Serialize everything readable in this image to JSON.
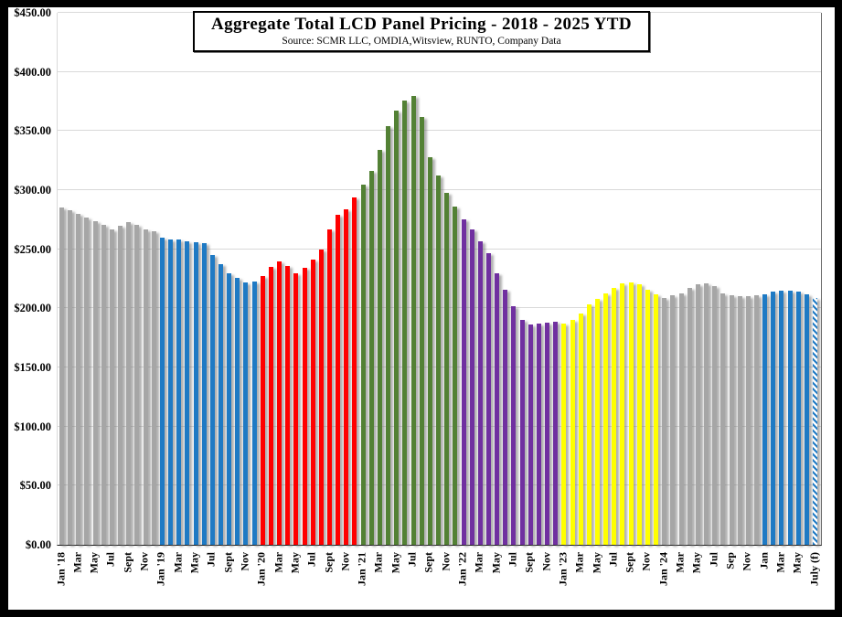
{
  "header": {
    "title": "Aggregate Total LCD Panel Pricing - 2018 - 2025 YTD",
    "subtitle": "Source: SCMR LLC, OMDIA,Witsview,  RUNTO, Company Data"
  },
  "chart_data": {
    "type": "bar",
    "title": "Aggregate Total LCD Panel Pricing - 2018 - 2025 YTD",
    "subtitle": "Source: SCMR LLC, OMDIA,Witsview,  RUNTO, Company Data",
    "xlabel": "",
    "ylabel": "",
    "ylim": [
      0,
      450
    ],
    "ytick_step": 50,
    "ytick_labels": [
      "$450.00",
      "$400.00",
      "$350.00",
      "$300.00",
      "$250.00",
      "$200.00",
      "$150.00",
      "$100.00",
      "$50.00",
      "$0.00"
    ],
    "grid": true,
    "legend_position": "none",
    "x_unit": "month",
    "x_tick_every_n_bars": 2,
    "x_tick_labels": [
      "Jan '18",
      "Mar",
      "May",
      "Jul",
      "Sept",
      "Nov",
      "Jan '19",
      "Mar",
      "May",
      "Jul",
      "Sept",
      "Nov",
      "Jan '20",
      "Mar",
      "May",
      "Jul",
      "Sept",
      "Nov",
      "Jan '21",
      "Mar",
      "May",
      "Jul",
      "Sept",
      "Nov",
      "Jan '22",
      "Mar",
      "May",
      "Jul",
      "Sept",
      "Nov",
      "Jan '23",
      "Mar",
      "May",
      "Jul",
      "Sept",
      "Nov",
      "Jan '24",
      "Mar",
      "May",
      "Jul",
      "Sep",
      "Nov",
      "Jan",
      "Mar",
      "May",
      "July (f)"
    ],
    "series": [
      {
        "name": "2018",
        "color": "#A6A6A6",
        "values": [
          285,
          283,
          280,
          277,
          274,
          271,
          267,
          270,
          273,
          271,
          267,
          265
        ]
      },
      {
        "name": "2019",
        "color": "#1F7AC4",
        "values": [
          260,
          258,
          258,
          257,
          256,
          255,
          245,
          237,
          230,
          226,
          222,
          223
        ]
      },
      {
        "name": "2020",
        "color": "#FF0000",
        "values": [
          227,
          235,
          240,
          236,
          230,
          234,
          241,
          250,
          267,
          279,
          284,
          294
        ]
      },
      {
        "name": "2021",
        "color": "#538135",
        "values": [
          305,
          316,
          334,
          354,
          367,
          376,
          380,
          362,
          328,
          312,
          298,
          286
        ]
      },
      {
        "name": "2022",
        "color": "#7030A0",
        "values": [
          275,
          267,
          257,
          247,
          230,
          216,
          202,
          190,
          186,
          187,
          188,
          189
        ]
      },
      {
        "name": "2023",
        "color": "#FFFF00",
        "values": [
          187,
          190,
          196,
          203,
          208,
          213,
          217,
          221,
          222,
          220,
          216,
          212
        ]
      },
      {
        "name": "2024",
        "color": "#A6A6A6",
        "values": [
          209,
          211,
          213,
          217,
          220,
          221,
          219,
          213,
          211,
          210,
          210,
          211
        ]
      },
      {
        "name": "2025",
        "color": "#1F7AC4",
        "values": [
          212,
          214,
          215,
          215,
          214,
          212,
          209
        ],
        "last_bar_hatched": true,
        "last_bar_label": "July (f)"
      }
    ],
    "colors": {
      "gridline": "#D9D9D9",
      "axis_line": "#1A1A1A",
      "plot_bg": "#FFFFFF",
      "frame": "#000000"
    }
  }
}
